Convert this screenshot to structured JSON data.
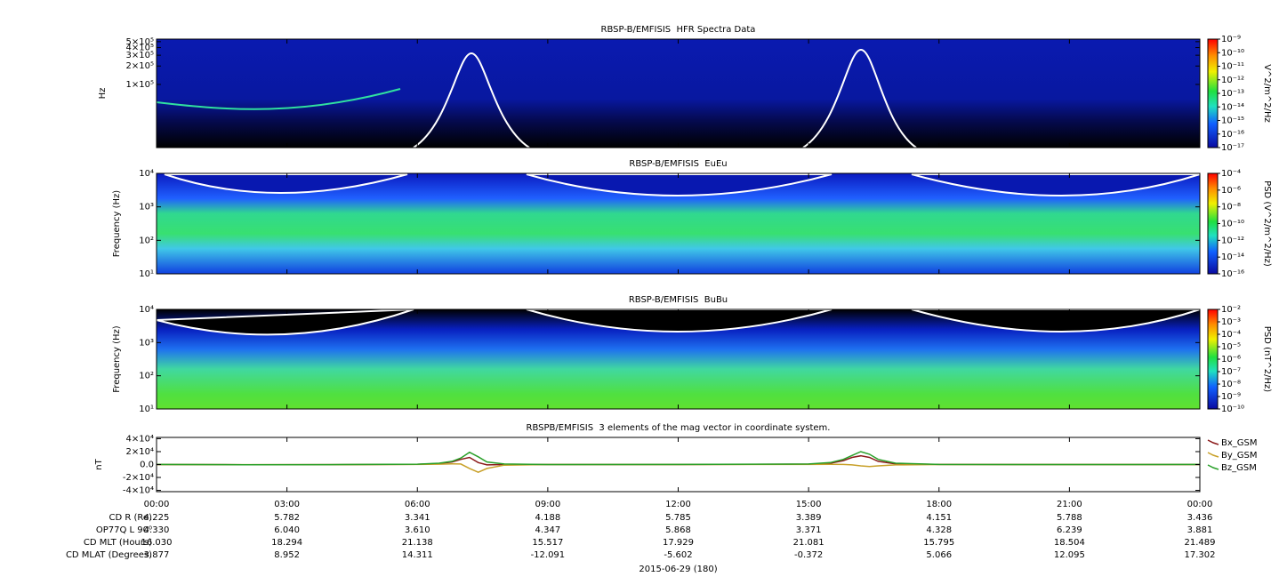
{
  "chart_data": [
    {
      "type": "spectrogram",
      "title": "RBSP-B/EMFISIS  HFR Spectra Data",
      "ylabel": "Hz",
      "log_y": true,
      "ylim": [
        9300,
        550000
      ],
      "yticks": [
        {
          "value": 500000,
          "label": "5×10⁵"
        },
        {
          "value": 400000,
          "label": "4×10⁵"
        },
        {
          "value": 300000,
          "label": "3×10⁵"
        },
        {
          "value": 200000,
          "label": "2×10⁵"
        },
        {
          "value": 100000,
          "label": "1×10⁵"
        }
      ],
      "colorbar": {
        "label": "V^2/m^2/Hz",
        "log": true,
        "lim": [
          1e-17,
          1e-09
        ],
        "ticks": [
          {
            "value": 1e-09,
            "label": "10⁻⁹"
          },
          {
            "value": 1e-10,
            "label": "10⁻¹⁰"
          },
          {
            "value": 1e-11,
            "label": "10⁻¹¹"
          },
          {
            "value": 1e-12,
            "label": "10⁻¹²"
          },
          {
            "value": 1e-13,
            "label": "10⁻¹³"
          },
          {
            "value": 1e-14,
            "label": "10⁻¹⁴"
          },
          {
            "value": 1e-15,
            "label": "10⁻¹⁵"
          },
          {
            "value": 1e-16,
            "label": "10⁻¹⁶"
          },
          {
            "value": 1e-17,
            "label": "10⁻¹⁷"
          }
        ]
      }
    },
    {
      "type": "spectrogram",
      "title": "RBSP-B/EMFISIS  EuEu",
      "ylabel": "Frequency (Hz)",
      "log_y": true,
      "ylim": [
        10,
        10000
      ],
      "yticks": [
        {
          "value": 10000,
          "label": "10⁴"
        },
        {
          "value": 1000,
          "label": "10³"
        },
        {
          "value": 100,
          "label": "10²"
        },
        {
          "value": 10,
          "label": "10¹"
        }
      ],
      "colorbar": {
        "label": "PSD (V^2/m^2/Hz)",
        "log": true,
        "lim": [
          1e-16,
          0.0001
        ],
        "ticks": [
          {
            "value": 0.0001,
            "label": "10⁻⁴"
          },
          {
            "value": 1e-06,
            "label": "10⁻⁶"
          },
          {
            "value": 1e-08,
            "label": "10⁻⁸"
          },
          {
            "value": 1e-10,
            "label": "10⁻¹⁰"
          },
          {
            "value": 1e-12,
            "label": "10⁻¹²"
          },
          {
            "value": 1e-14,
            "label": "10⁻¹⁴"
          },
          {
            "value": 1e-16,
            "label": "10⁻¹⁶"
          }
        ]
      }
    },
    {
      "type": "spectrogram",
      "title": "RBSP-B/EMFISIS  BuBu",
      "ylabel": "Frequency (Hz)",
      "log_y": true,
      "ylim": [
        10,
        10000
      ],
      "yticks": [
        {
          "value": 10000,
          "label": "10⁴"
        },
        {
          "value": 1000,
          "label": "10³"
        },
        {
          "value": 100,
          "label": "10²"
        },
        {
          "value": 10,
          "label": "10¹"
        }
      ],
      "colorbar": {
        "label": "PSD (nT^2/Hz)",
        "log": true,
        "lim": [
          1e-10,
          0.01
        ],
        "ticks": [
          {
            "value": 0.01,
            "label": "10⁻²"
          },
          {
            "value": 0.001,
            "label": "10⁻³"
          },
          {
            "value": 0.0001,
            "label": "10⁻⁴"
          },
          {
            "value": 1e-05,
            "label": "10⁻⁵"
          },
          {
            "value": 1e-06,
            "label": "10⁻⁶"
          },
          {
            "value": 1e-07,
            "label": "10⁻⁷"
          },
          {
            "value": 1e-08,
            "label": "10⁻⁸"
          },
          {
            "value": 1e-09,
            "label": "10⁻⁹"
          },
          {
            "value": 1e-10,
            "label": "10⁻¹⁰"
          }
        ]
      }
    },
    {
      "type": "line",
      "title": "RBSPB/EMFISIS  3 elements of the mag vector in coordinate system.",
      "ylabel": "nT",
      "ylim": [
        -42000,
        42000
      ],
      "yticks": [
        {
          "value": 40000,
          "label": "4×10⁴"
        },
        {
          "value": 20000,
          "label": "2×10⁴"
        },
        {
          "value": 0,
          "label": "0.0"
        },
        {
          "value": -20000,
          "label": "-2×10⁴"
        },
        {
          "value": -40000,
          "label": "-4×10⁴"
        }
      ],
      "xlim": [
        0,
        24
      ],
      "xticks": [
        {
          "value": 0,
          "label": "00:00"
        },
        {
          "value": 3,
          "label": "03:00"
        },
        {
          "value": 6,
          "label": "06:00"
        },
        {
          "value": 9,
          "label": "09:00"
        },
        {
          "value": 12,
          "label": "12:00"
        },
        {
          "value": 15,
          "label": "15:00"
        },
        {
          "value": 18,
          "label": "18:00"
        },
        {
          "value": 21,
          "label": "21:00"
        },
        {
          "value": 24,
          "label": "00:00"
        }
      ],
      "x": [
        0,
        2,
        4,
        6,
        6.5,
        6.8,
        7.0,
        7.2,
        7.4,
        7.6,
        8.0,
        9,
        12,
        15,
        15.5,
        15.8,
        16.0,
        16.2,
        16.4,
        16.6,
        17,
        18,
        21,
        24
      ],
      "series": [
        {
          "name": "Bx_GSM",
          "color": "#8b1a1a",
          "values": [
            0,
            -300,
            -200,
            300,
            1500,
            4000,
            8000,
            11000,
            3000,
            -500,
            0,
            0,
            0,
            500,
            2000,
            6000,
            11000,
            13500,
            11000,
            5000,
            1000,
            100,
            0,
            0
          ]
        },
        {
          "name": "By_GSM",
          "color": "#c8a028",
          "values": [
            0,
            -200,
            -100,
            200,
            500,
            1000,
            800,
            -6000,
            -12000,
            -6000,
            -1000,
            0,
            0,
            200,
            300,
            200,
            -500,
            -2000,
            -3000,
            -2000,
            -500,
            0,
            0,
            0
          ]
        },
        {
          "name": "Bz_GSM",
          "color": "#2aa02a",
          "values": [
            100,
            -300,
            -200,
            500,
            2000,
            5000,
            10000,
            19000,
            12000,
            4000,
            800,
            0,
            100,
            800,
            3000,
            8000,
            14000,
            20000,
            16000,
            8000,
            2000,
            200,
            0,
            100
          ]
        }
      ]
    }
  ],
  "ephemeris": {
    "rows": [
      {
        "label": "CD R (Re)",
        "values": [
          "4.225",
          "5.782",
          "3.341",
          "4.188",
          "5.785",
          "3.389",
          "4.151",
          "5.788",
          "3.436"
        ]
      },
      {
        "label": "OP77Q L 90⁰",
        "values": [
          "4.330",
          "6.040",
          "3.610",
          "4.347",
          "5.868",
          "3.371",
          "4.328",
          "6.239",
          "3.881"
        ]
      },
      {
        "label": "CD MLT (Hours)",
        "values": [
          "16.030",
          "18.294",
          "21.138",
          "15.517",
          "17.929",
          "21.081",
          "15.795",
          "18.504",
          "21.489"
        ]
      },
      {
        "label": "CD MLAT (Degrees)",
        "values": [
          "3.877",
          "8.952",
          "14.311",
          "-12.091",
          "-5.602",
          "-0.372",
          "5.066",
          "12.095",
          "17.302"
        ]
      }
    ],
    "date": "2015-06-29 (180)"
  }
}
